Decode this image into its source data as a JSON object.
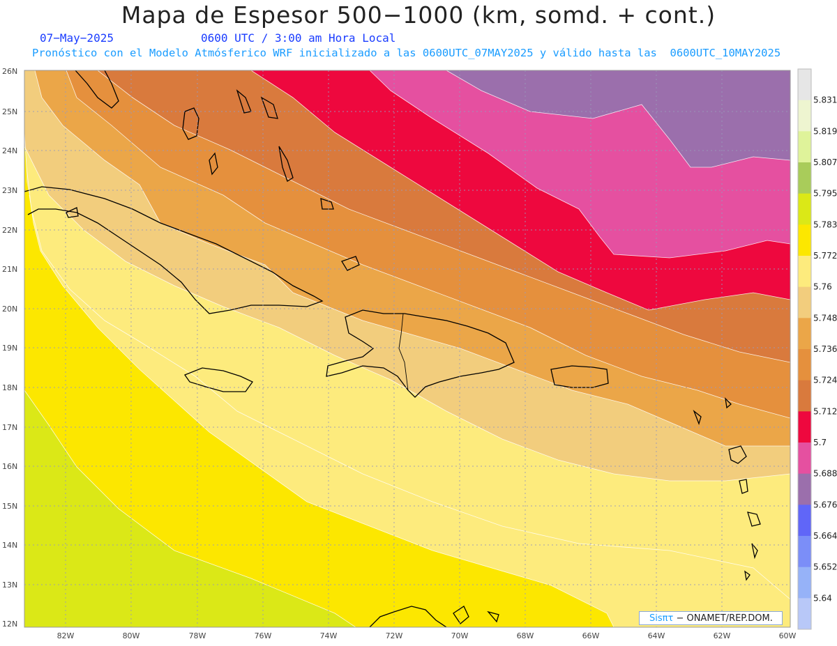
{
  "header": {
    "title": "Mapa de Espesor 500−1000 (km, somd. + cont.)",
    "date": "07−May−2025",
    "time": "0600 UTC / 3:00 am Hora Local",
    "description": "Pronóstico con el Modelo Atmósferico WRF inicializado a las 0600UTC_07MAY2025 y válido hasta las  0600UTC_10MAY2025"
  },
  "axes": {
    "lat_labels": [
      "26N",
      "25N",
      "24N",
      "23N",
      "22N",
      "21N",
      "20N",
      "19N",
      "18N",
      "17N",
      "16N",
      "15N",
      "14N",
      "13N",
      "12N"
    ],
    "lon_labels": [
      "82W",
      "80W",
      "78W",
      "76W",
      "74W",
      "72W",
      "70W",
      "68W",
      "66W",
      "64W",
      "62W",
      "60W"
    ]
  },
  "colorbar": {
    "labels": [
      "5.831",
      "5.819",
      "5.807",
      "5.795",
      "5.783",
      "5.772",
      "5.76",
      "5.748",
      "5.736",
      "5.724",
      "5.712",
      "5.7",
      "5.688",
      "5.676",
      "5.664",
      "5.652",
      "5.64"
    ],
    "colors": [
      "#e6e6e6",
      "#eef5d0",
      "#dff39a",
      "#a9cc5a",
      "#dbe817",
      "#fce700",
      "#fdeb7d",
      "#f2cd7d",
      "#eba648",
      "#e5903d",
      "#d97a3d",
      "#ee083e",
      "#e550a0",
      "#9b6fac",
      "#6066f8",
      "#7b8ef8",
      "#96b2f8",
      "#b8c8f8"
    ]
  },
  "logo": {
    "brand": "Sisπτ",
    "text": "− ONAMET/REP.DOM."
  }
}
